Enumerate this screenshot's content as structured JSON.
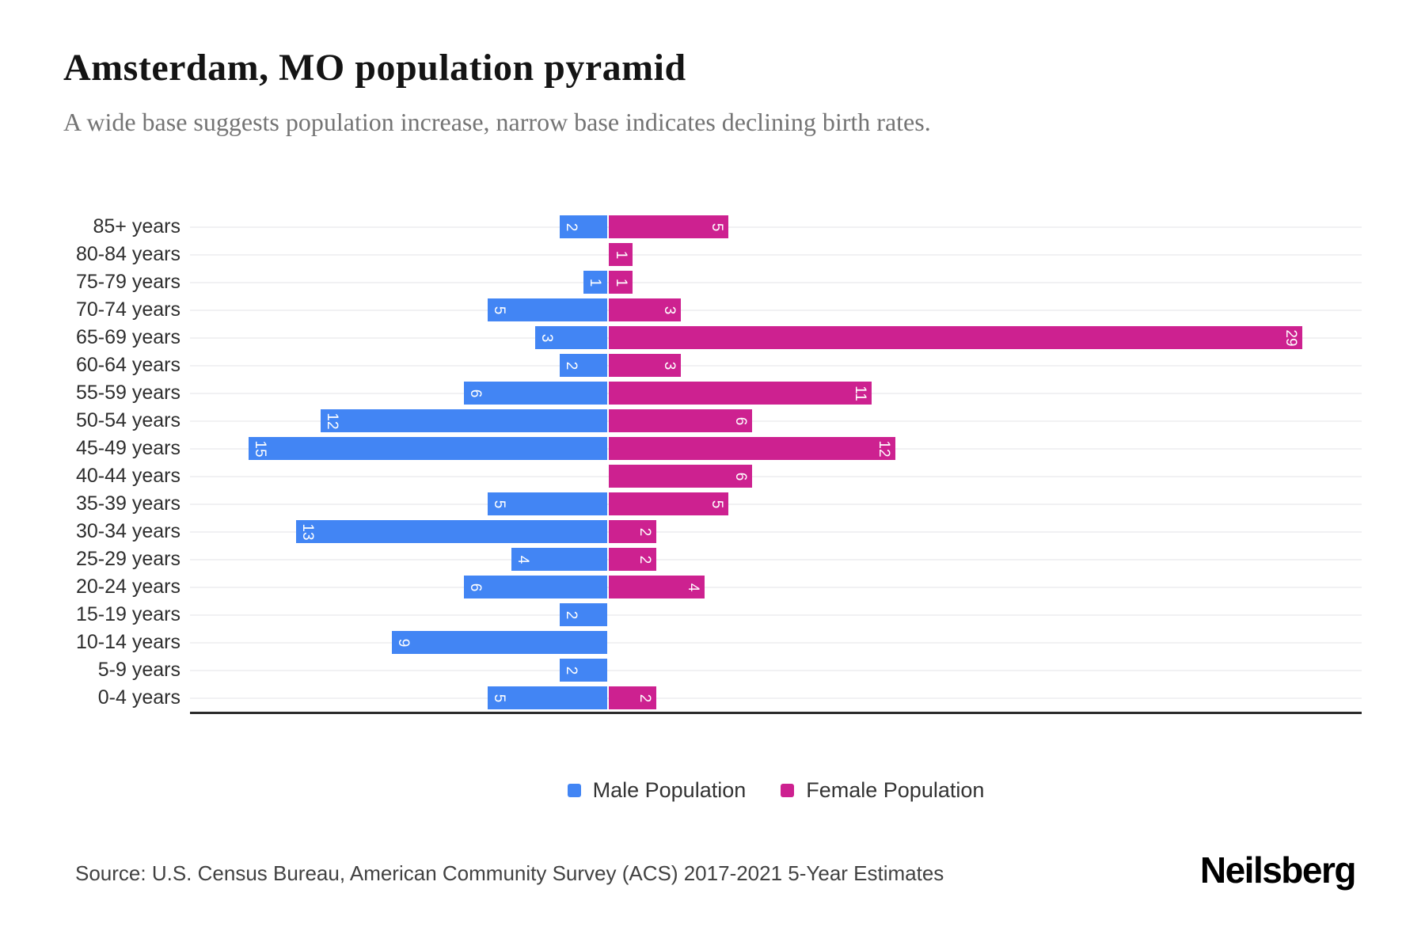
{
  "header": {
    "title": "Amsterdam, MO population pyramid",
    "subtitle": "A wide base suggests population increase, narrow base indicates declining birth rates."
  },
  "legend": {
    "male_label": "Male Population",
    "female_label": "Female Population"
  },
  "footer": {
    "source": "Source: U.S. Census Bureau, American Community Survey (ACS) 2017-2021 5-Year Estimates",
    "brand": "Neilsberg"
  },
  "colors": {
    "male": "#4285f4",
    "female": "#cd2190",
    "gridline": "#f1f1f3",
    "axis": "#2b2b2b",
    "bar_value_text": "#ffffff"
  },
  "chart_data": {
    "type": "bar",
    "orientation": "horizontal population pyramid, males left, females right",
    "title": "Amsterdam, MO population pyramid",
    "categories": [
      "85+ years",
      "80-84 years",
      "75-79 years",
      "70-74 years",
      "65-69 years",
      "60-64 years",
      "55-59 years",
      "50-54 years",
      "45-49 years",
      "40-44 years",
      "35-39 years",
      "30-34 years",
      "25-29 years",
      "20-24 years",
      "15-19 years",
      "10-14 years",
      "5-9 years",
      "0-4 years"
    ],
    "series": [
      {
        "name": "Male Population",
        "color": "#4285f4",
        "values": [
          2,
          0,
          1,
          5,
          3,
          2,
          6,
          12,
          15,
          0,
          5,
          13,
          4,
          6,
          2,
          9,
          2,
          5
        ]
      },
      {
        "name": "Female Population",
        "color": "#cd2190",
        "values": [
          5,
          1,
          1,
          3,
          29,
          3,
          11,
          6,
          12,
          6,
          5,
          2,
          2,
          4,
          0,
          0,
          0,
          2
        ]
      }
    ],
    "value_labels": "shown inside bars at far end, rotated 90deg, white",
    "xlabel": "",
    "ylabel": "",
    "x_max_female": 29,
    "x_max_male": 15,
    "grid": true,
    "legend_position": "bottom"
  }
}
